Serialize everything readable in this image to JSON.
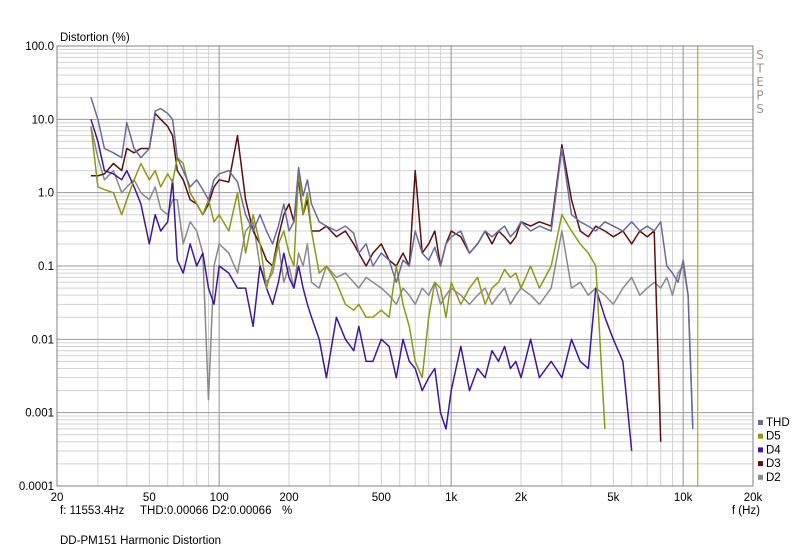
{
  "chart_data": {
    "type": "line",
    "title": "DD-PM151 Harmonic Distortion",
    "ylabel": "Distortion (%)",
    "xlabel": "f (Hz)",
    "x_scale": "log",
    "y_scale": "log",
    "xlim": [
      20,
      20000
    ],
    "ylim": [
      0.0001,
      100
    ],
    "grid": true,
    "legend_position": "right-bottom",
    "watermark": "STEPS",
    "x_ticks": [
      {
        "value": 20,
        "label": "20"
      },
      {
        "value": 50,
        "label": "50"
      },
      {
        "value": 100,
        "label": "100"
      },
      {
        "value": 200,
        "label": "200"
      },
      {
        "value": 500,
        "label": "500"
      },
      {
        "value": 1000,
        "label": "1k"
      },
      {
        "value": 2000,
        "label": "2k"
      },
      {
        "value": 5000,
        "label": "5k"
      },
      {
        "value": 10000,
        "label": "10k"
      },
      {
        "value": 20000,
        "label": "20k"
      }
    ],
    "y_ticks": [
      {
        "value": 100,
        "label": "100.0"
      },
      {
        "value": 10,
        "label": "10.0"
      },
      {
        "value": 1,
        "label": "1.0"
      },
      {
        "value": 0.1,
        "label": "0.1"
      },
      {
        "value": 0.01,
        "label": "0.01"
      },
      {
        "value": 0.001,
        "label": "0.001"
      },
      {
        "value": 0.0001,
        "label": "0.0001"
      }
    ],
    "cursor": {
      "frequency": 11553.4,
      "color": "#b8b818"
    },
    "readout": {
      "freq": "f: 11553.4Hz",
      "thd": "THD:0.00066",
      "d2": "D2:0.00066",
      "unit": "%"
    },
    "series": [
      {
        "name": "THD",
        "color": "#6a6a9c",
        "x": [
          28,
          30,
          32,
          35,
          38,
          40,
          43,
          46,
          50,
          53,
          56,
          60,
          63,
          66,
          70,
          75,
          80,
          85,
          90,
          95,
          100,
          110,
          120,
          130,
          140,
          150,
          160,
          170,
          180,
          190,
          200,
          210,
          220,
          230,
          240,
          250,
          270,
          290,
          320,
          350,
          380,
          400,
          430,
          460,
          500,
          540,
          580,
          620,
          660,
          700,
          750,
          800,
          850,
          900,
          950,
          1000,
          1100,
          1200,
          1300,
          1400,
          1500,
          1600,
          1700,
          1800,
          1900,
          2000,
          2200,
          2400,
          2700,
          3000,
          3300,
          3600,
          3900,
          4200,
          4600,
          5000,
          5500,
          6000,
          6500,
          7000,
          7500,
          8000,
          8500,
          9000,
          9500,
          10000,
          10500,
          11000
        ],
        "y": [
          20,
          10,
          4,
          3.5,
          3,
          9,
          4,
          3,
          4,
          13,
          14,
          12,
          10,
          3,
          2,
          1.2,
          1.5,
          1.1,
          0.8,
          1.5,
          1.8,
          2,
          1.4,
          0.5,
          0.3,
          0.5,
          0.3,
          0.2,
          0.35,
          0.7,
          0.3,
          0.4,
          2.2,
          0.9,
          1.5,
          0.7,
          0.4,
          0.35,
          0.3,
          0.35,
          0.28,
          0.15,
          0.2,
          0.1,
          0.15,
          0.12,
          0.06,
          0.12,
          0.1,
          0.3,
          0.15,
          0.12,
          0.18,
          0.1,
          0.2,
          0.25,
          0.3,
          0.15,
          0.2,
          0.3,
          0.25,
          0.3,
          0.35,
          0.25,
          0.3,
          0.4,
          0.3,
          0.35,
          0.3,
          4,
          0.5,
          0.4,
          0.35,
          0.3,
          0.4,
          0.35,
          0.3,
          0.4,
          0.3,
          0.35,
          0.3,
          0.4,
          0.1,
          0.08,
          0.06,
          0.12,
          0.04,
          0.0006
        ]
      },
      {
        "name": "D5",
        "color": "#8a9a18",
        "x": [
          28,
          30,
          32,
          35,
          38,
          40,
          43,
          46,
          50,
          53,
          56,
          60,
          63,
          66,
          70,
          75,
          80,
          85,
          90,
          95,
          100,
          110,
          120,
          130,
          140,
          150,
          160,
          170,
          180,
          190,
          200,
          210,
          220,
          230,
          240,
          250,
          270,
          290,
          320,
          350,
          380,
          400,
          430,
          460,
          500,
          540,
          580,
          620,
          660,
          700,
          750,
          800,
          850,
          900,
          950,
          1000,
          1100,
          1200,
          1300,
          1400,
          1500,
          1600,
          1700,
          1800,
          1900,
          2000,
          2200,
          2400,
          2700,
          3000,
          3300,
          3600,
          3900,
          4200,
          4600
        ],
        "y": [
          8,
          1.2,
          1.1,
          1,
          0.5,
          0.8,
          1.5,
          2.5,
          1.5,
          2,
          1.2,
          1.8,
          1.4,
          3,
          2.5,
          1,
          0.7,
          0.5,
          0.8,
          0.4,
          0.5,
          0.3,
          1,
          0.15,
          0.5,
          0.2,
          0.05,
          0.1,
          0.2,
          0.3,
          0.15,
          0.1,
          2,
          0.5,
          1,
          0.3,
          0.08,
          0.1,
          0.06,
          0.03,
          0.025,
          0.03,
          0.02,
          0.02,
          0.025,
          0.02,
          0.1,
          0.03,
          0.015,
          0.005,
          0.003,
          0.02,
          0.06,
          0.05,
          0.02,
          0.06,
          0.03,
          0.05,
          0.07,
          0.03,
          0.05,
          0.06,
          0.09,
          0.07,
          0.08,
          0.05,
          0.1,
          0.05,
          0.1,
          0.5,
          0.3,
          0.2,
          0.15,
          0.1,
          0.0006
        ]
      },
      {
        "name": "D4",
        "color": "#3a1a98",
        "x": [
          28,
          30,
          32,
          35,
          38,
          40,
          43,
          46,
          50,
          53,
          56,
          60,
          63,
          66,
          70,
          75,
          80,
          85,
          90,
          95,
          100,
          110,
          120,
          130,
          140,
          150,
          160,
          170,
          180,
          190,
          200,
          210,
          220,
          230,
          240,
          250,
          270,
          290,
          320,
          350,
          380,
          400,
          430,
          460,
          500,
          540,
          580,
          620,
          660,
          700,
          750,
          800,
          850,
          900,
          950,
          1000,
          1100,
          1200,
          1300,
          1400,
          1500,
          1600,
          1700,
          1800,
          1900,
          2000,
          2200,
          2400,
          2700,
          3000,
          3300,
          3600,
          3900,
          4200,
          4600,
          5000,
          5500,
          6000
        ],
        "y": [
          10,
          5,
          2,
          1.8,
          1.5,
          2,
          1.2,
          0.7,
          0.2,
          0.5,
          0.3,
          0.4,
          1.5,
          0.12,
          0.08,
          0.2,
          0.1,
          0.15,
          0.05,
          0.03,
          0.1,
          0.08,
          0.05,
          0.05,
          0.015,
          0.1,
          0.05,
          0.03,
          0.06,
          0.15,
          0.07,
          0.05,
          0.1,
          0.05,
          0.03,
          0.02,
          0.01,
          0.003,
          0.02,
          0.01,
          0.007,
          0.015,
          0.005,
          0.005,
          0.01,
          0.008,
          0.003,
          0.01,
          0.005,
          0.004,
          0.002,
          0.003,
          0.004,
          0.001,
          0.0006,
          0.002,
          0.008,
          0.002,
          0.004,
          0.003,
          0.007,
          0.005,
          0.008,
          0.004,
          0.005,
          0.003,
          0.01,
          0.003,
          0.005,
          0.003,
          0.01,
          0.005,
          0.004,
          0.05,
          0.02,
          0.01,
          0.005,
          0.0003
        ]
      },
      {
        "name": "D3",
        "color": "#5a1010",
        "x": [
          28,
          30,
          32,
          35,
          38,
          40,
          43,
          46,
          50,
          53,
          56,
          60,
          63,
          66,
          70,
          75,
          80,
          85,
          90,
          95,
          100,
          110,
          120,
          130,
          140,
          150,
          160,
          170,
          180,
          190,
          200,
          210,
          220,
          230,
          240,
          250,
          270,
          290,
          320,
          350,
          380,
          400,
          430,
          460,
          500,
          540,
          580,
          620,
          660,
          700,
          750,
          800,
          850,
          900,
          950,
          1000,
          1100,
          1200,
          1300,
          1400,
          1500,
          1600,
          1700,
          1800,
          1900,
          2000,
          2200,
          2400,
          2700,
          3000,
          3300,
          3600,
          3900,
          4200,
          4600,
          5000,
          5500,
          6000,
          6500,
          7000,
          7500,
          8000
        ],
        "y": [
          1.7,
          1.7,
          1.8,
          2.5,
          2,
          4,
          3.5,
          4,
          4,
          12,
          10,
          8,
          6,
          2,
          1.5,
          0.8,
          0.7,
          0.5,
          0.7,
          1.2,
          1.5,
          1.4,
          6,
          0.8,
          0.3,
          0.2,
          0.12,
          0.1,
          0.25,
          0.5,
          0.7,
          0.4,
          1.5,
          0.5,
          0.8,
          0.3,
          0.3,
          0.35,
          0.25,
          0.3,
          0.2,
          0.15,
          0.1,
          0.15,
          0.2,
          0.12,
          0.1,
          0.15,
          0.1,
          2,
          0.15,
          0.2,
          0.3,
          0.1,
          0.2,
          0.3,
          0.25,
          0.15,
          0.2,
          0.3,
          0.2,
          0.3,
          0.25,
          0.2,
          0.25,
          0.4,
          0.35,
          0.4,
          0.35,
          4.5,
          0.8,
          0.3,
          0.25,
          0.35,
          0.3,
          0.25,
          0.3,
          0.2,
          0.3,
          0.25,
          0.3,
          0.0004
        ]
      },
      {
        "name": "D2",
        "color": "#8a8a8a",
        "x": [
          28,
          30,
          32,
          35,
          38,
          40,
          43,
          46,
          50,
          53,
          56,
          60,
          63,
          66,
          70,
          75,
          80,
          85,
          90,
          95,
          100,
          110,
          120,
          130,
          140,
          150,
          160,
          170,
          180,
          190,
          200,
          210,
          220,
          230,
          240,
          250,
          270,
          290,
          320,
          350,
          380,
          400,
          430,
          460,
          500,
          540,
          580,
          620,
          660,
          700,
          750,
          800,
          850,
          900,
          950,
          1000,
          1100,
          1200,
          1300,
          1400,
          1500,
          1600,
          1700,
          1800,
          1900,
          2000,
          2200,
          2400,
          2700,
          3000,
          3300,
          3600,
          3900,
          4200,
          4600,
          5000,
          5500,
          6000,
          6500,
          7000,
          7500,
          8000,
          8500,
          9000,
          9500,
          10000,
          10500,
          11000
        ],
        "y": [
          8,
          3,
          1.5,
          2,
          1,
          1.2,
          1.5,
          1,
          0.8,
          1.2,
          0.6,
          0.5,
          0.8,
          0.8,
          0.2,
          0.4,
          0.3,
          0.15,
          0.0015,
          0.1,
          0.2,
          0.15,
          0.08,
          0.3,
          0.4,
          0.1,
          0.06,
          0.08,
          0.2,
          0.06,
          0.1,
          0.05,
          0.15,
          0.1,
          0.2,
          0.06,
          0.05,
          0.1,
          0.07,
          0.08,
          0.06,
          0.05,
          0.07,
          0.06,
          0.05,
          0.04,
          0.03,
          0.05,
          0.04,
          0.03,
          0.05,
          0.04,
          0.06,
          0.03,
          0.04,
          0.05,
          0.04,
          0.03,
          0.04,
          0.05,
          0.03,
          0.04,
          0.05,
          0.03,
          0.04,
          0.05,
          0.04,
          0.03,
          0.05,
          0.3,
          0.05,
          0.06,
          0.04,
          0.05,
          0.04,
          0.03,
          0.05,
          0.07,
          0.04,
          0.05,
          0.06,
          0.05,
          0.07,
          0.04,
          0.08,
          0.1,
          0.04,
          0.0006
        ]
      }
    ]
  }
}
